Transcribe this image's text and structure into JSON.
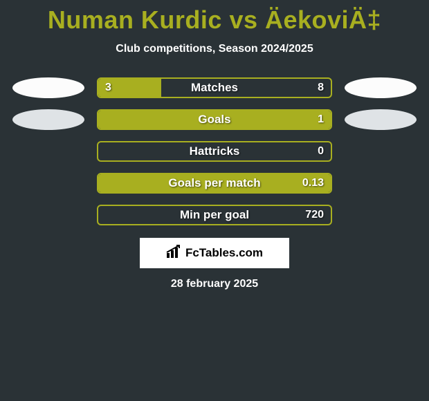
{
  "title": "Numan Kurdic vs ÄekoviÄ‡",
  "subtitle": "Club competitions, Season 2024/2025",
  "brand": "FcTables.com",
  "date": "28 february 2025",
  "colors": {
    "background": "#2a3236",
    "accent": "#a8af20",
    "oval_white": "#fcfcfc",
    "oval_gray": "#dfe3e6",
    "text_white": "#ffffff"
  },
  "rows": [
    {
      "label": "Matches",
      "left_value": "3",
      "right_value": "8",
      "left_fill_pct": 27,
      "show_ovals": true,
      "left_oval_color": "#fcfcfc",
      "right_oval_color": "#fcfcfc"
    },
    {
      "label": "Goals",
      "left_value": "",
      "right_value": "1",
      "left_fill_pct": 100,
      "show_ovals": true,
      "left_oval_color": "#dfe3e6",
      "right_oval_color": "#dfe3e6"
    },
    {
      "label": "Hattricks",
      "left_value": "",
      "right_value": "0",
      "left_fill_pct": 0,
      "show_ovals": false
    },
    {
      "label": "Goals per match",
      "left_value": "",
      "right_value": "0.13",
      "left_fill_pct": 100,
      "show_ovals": false
    },
    {
      "label": "Min per goal",
      "left_value": "",
      "right_value": "720",
      "left_fill_pct": 0,
      "show_ovals": false
    }
  ]
}
